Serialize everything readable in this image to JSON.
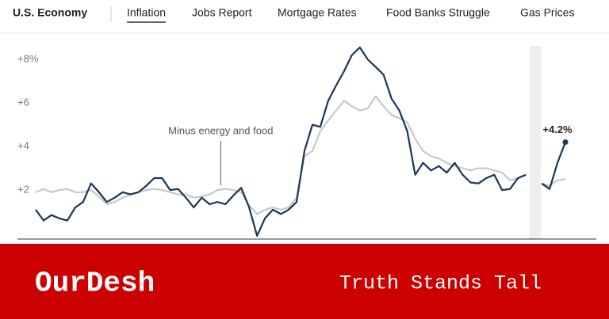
{
  "nav": {
    "section": "U.S. Economy",
    "links": [
      "Inflation",
      "Jobs Report",
      "Mortgage Rates",
      "Food Banks Struggle",
      "Gas Prices"
    ],
    "active": 0
  },
  "chart_data": {
    "type": "line",
    "ylim": [
      -0.25,
      9.2
    ],
    "yticks": [
      {
        "value": 2,
        "label": "+2"
      },
      {
        "value": 4,
        "label": "+4"
      },
      {
        "value": 6,
        "label": "+6"
      },
      {
        "value": 8,
        "label": "+8%"
      }
    ],
    "grid": false,
    "series": [
      {
        "color": "#1c3553",
        "values": [
          1.1,
          0.6,
          0.85,
          0.7,
          0.6,
          1.2,
          1.45,
          2.3,
          1.9,
          1.45,
          1.65,
          1.9,
          1.8,
          1.9,
          2.2,
          2.55,
          2.55,
          2.0,
          2.05,
          1.65,
          1.2,
          1.65,
          1.35,
          1.45,
          1.35,
          1.75,
          2.1,
          1.2,
          -0.1,
          0.7,
          1.1,
          0.9,
          1.1,
          1.45,
          3.8,
          5.0,
          4.9,
          6.1,
          6.8,
          7.45,
          8.2,
          8.55,
          8.0,
          7.65,
          7.3,
          6.2,
          5.65,
          4.7,
          2.7,
          3.25,
          2.9,
          3.1,
          2.8,
          3.25,
          2.7,
          2.35,
          2.3,
          2.55,
          2.7,
          2.0,
          2.05,
          2.55,
          2.7,
          null,
          2.3,
          2.05,
          3.25,
          4.2
        ],
        "value_labels": [
          null,
          null,
          null,
          null,
          null,
          null,
          null,
          null,
          null,
          null,
          null,
          null,
          null,
          null,
          null,
          null,
          null,
          null,
          null,
          null,
          null,
          null,
          null,
          null,
          null,
          null,
          null,
          null,
          null,
          null,
          null,
          null,
          null,
          null,
          null,
          null,
          null,
          null,
          null,
          null,
          null,
          null,
          null,
          null,
          null,
          null,
          null,
          null,
          null,
          null,
          null,
          null,
          null,
          null,
          null,
          null,
          null,
          null,
          null,
          null,
          null,
          null,
          null,
          null,
          null,
          null,
          null,
          "+4.2%"
        ]
      },
      {
        "name": "Minus energy and food",
        "color": "#c8c8c8",
        "values": [
          1.9,
          2.05,
          1.9,
          2.0,
          2.05,
          1.9,
          1.9,
          2.0,
          1.7,
          1.35,
          1.45,
          1.65,
          1.8,
          1.9,
          2.0,
          2.05,
          2.0,
          1.9,
          1.8,
          1.8,
          1.65,
          1.7,
          1.8,
          2.0,
          2.05,
          2.0,
          1.9,
          1.3,
          0.9,
          1.1,
          1.2,
          1.1,
          1.2,
          1.65,
          3.55,
          3.8,
          4.7,
          5.2,
          5.65,
          6.1,
          5.85,
          5.65,
          5.75,
          6.3,
          5.85,
          5.45,
          5.3,
          5.1,
          4.35,
          3.8,
          3.55,
          3.45,
          3.25,
          3.1,
          3.0,
          2.9,
          3.0,
          3.0,
          2.9,
          2.8,
          2.45,
          2.55,
          2.7,
          null,
          2.3,
          2.2,
          2.45,
          2.5
        ]
      }
    ]
  },
  "banner": {
    "brand": "OurDesh",
    "tagline": "Truth Stands Tall"
  }
}
